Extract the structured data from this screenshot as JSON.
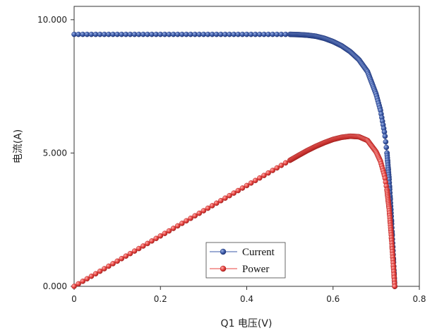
{
  "chart_data": {
    "type": "scatter",
    "title": "",
    "xlabel": "Q1 电压(V)",
    "ylabel": "电流(A)",
    "xlim": [
      0,
      0.8
    ],
    "ylim": [
      0,
      10.5
    ],
    "xticks": [
      0,
      0.2,
      0.4,
      0.6,
      0.8
    ],
    "xtick_labels": [
      "0",
      "0.2",
      "0.4",
      "0.6",
      "0.8"
    ],
    "yticks": [
      0,
      5,
      10
    ],
    "ytick_labels": [
      "0.000",
      "5.000",
      "10.000"
    ],
    "grid": false,
    "legend": {
      "placement": "bottom-center"
    },
    "series": [
      {
        "name": "Current",
        "color": "#3b5aa8",
        "x": [
          0,
          0.1,
          0.2,
          0.3,
          0.4,
          0.5,
          0.52,
          0.54,
          0.56,
          0.58,
          0.6,
          0.62,
          0.64,
          0.66,
          0.68,
          0.7,
          0.71,
          0.72,
          0.725,
          0.73,
          0.735,
          0.74,
          0.743
        ],
        "y": [
          9.45,
          9.45,
          9.45,
          9.45,
          9.45,
          9.45,
          9.44,
          9.42,
          9.38,
          9.3,
          9.18,
          9.02,
          8.8,
          8.5,
          8.05,
          7.2,
          6.6,
          5.7,
          5.0,
          4.0,
          2.6,
          1.0,
          0
        ]
      },
      {
        "name": "Power",
        "color": "#e8413e",
        "x": [
          0,
          0.1,
          0.2,
          0.3,
          0.4,
          0.5,
          0.52,
          0.54,
          0.56,
          0.58,
          0.6,
          0.62,
          0.64,
          0.66,
          0.68,
          0.7,
          0.71,
          0.72,
          0.725,
          0.73,
          0.735,
          0.74,
          0.743
        ],
        "y": [
          0,
          0.945,
          1.89,
          2.835,
          3.78,
          4.725,
          4.91,
          5.09,
          5.25,
          5.39,
          5.51,
          5.59,
          5.63,
          5.61,
          5.47,
          5.04,
          4.69,
          4.1,
          3.62,
          2.92,
          1.91,
          0.74,
          0
        ]
      }
    ]
  }
}
